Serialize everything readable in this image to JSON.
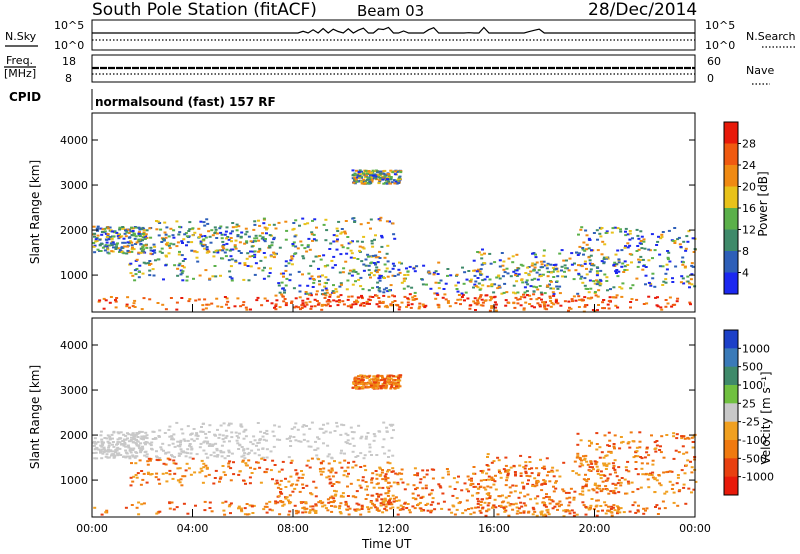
{
  "header": {
    "station": "South Pole Station (fitACF)",
    "beam": "Beam 03",
    "date": "28/Dec/2014"
  },
  "params": {
    "nsky_label": "N.Sky",
    "nsearch_label": "N.Search",
    "freq_label": "Freq.",
    "freq_unit": "[MHz]",
    "nave_label": "Nave",
    "cpid_label": "CPID",
    "cpid_value": "normalsound (fast) 157 RF",
    "noise_ticks_left": [
      "10^5",
      "10^0"
    ],
    "noise_ticks_right": [
      "10^5",
      "10^0"
    ],
    "freq_ticks": [
      "18",
      "8"
    ],
    "nave_ticks": [
      "60",
      "0"
    ]
  },
  "colors": {
    "power_scale": [
      "#1c28f0",
      "#2e5fb8",
      "#3f8a6a",
      "#5bb04a",
      "#e8c21a",
      "#f08a12",
      "#f05a10",
      "#e81a0a"
    ],
    "velocity_scale": [
      "#1c40c8",
      "#3a7ab8",
      "#3f8a6a",
      "#70c040",
      "#c8c8c8",
      "#f0a020",
      "#f07a10",
      "#e84010",
      "#e81a0a"
    ]
  },
  "chart_data": [
    {
      "type": "heatmap",
      "name": "power",
      "xlabel": "",
      "ylabel": "Slant Range [km]",
      "x_ticks": [
        "00:00",
        "04:00",
        "08:00",
        "12:00",
        "16:00",
        "20:00",
        "00:00"
      ],
      "y_ticks": [
        "1000",
        "2000",
        "3000",
        "4000"
      ],
      "ylim": [
        180,
        4600
      ],
      "colorbar": {
        "label": "Power [dB]",
        "ticks": [
          "4",
          "8",
          "12",
          "16",
          "20",
          "24",
          "28"
        ]
      }
    },
    {
      "type": "heatmap",
      "name": "velocity",
      "xlabel": "Time UT",
      "ylabel": "Slant Range [km]",
      "x_ticks": [
        "00:00",
        "04:00",
        "08:00",
        "12:00",
        "16:00",
        "20:00",
        "00:00"
      ],
      "y_ticks": [
        "1000",
        "2000",
        "3000",
        "4000"
      ],
      "ylim": [
        180,
        4600
      ],
      "colorbar": {
        "label": "Velocity [m s⁻¹]",
        "ticks": [
          "1000",
          "500",
          "100",
          "25",
          "-25",
          "-100",
          "-500",
          "-1000"
        ]
      }
    }
  ]
}
